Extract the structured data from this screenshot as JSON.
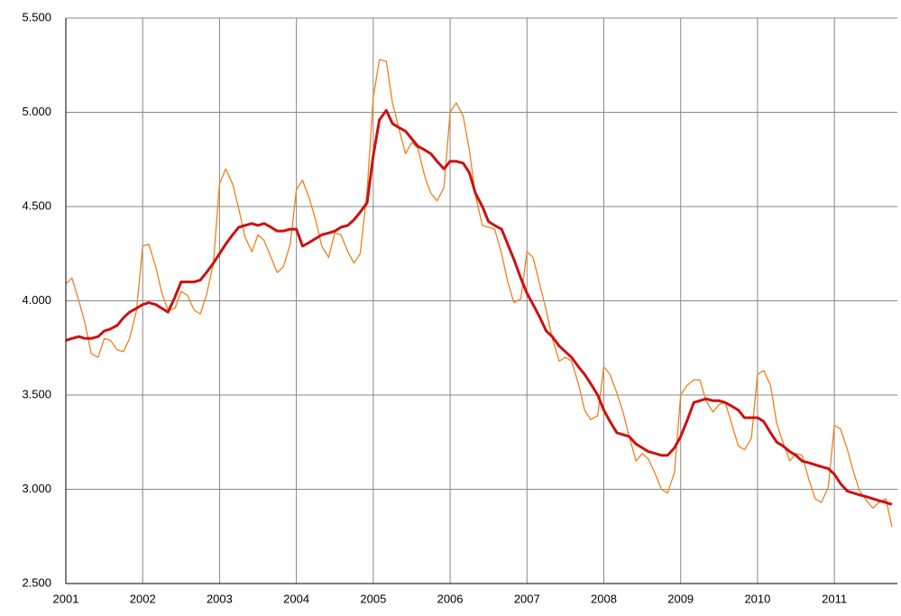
{
  "chart_data": {
    "type": "line",
    "x": [
      2001,
      2001.08,
      2001.17,
      2001.25,
      2001.33,
      2001.42,
      2001.5,
      2001.58,
      2001.67,
      2001.75,
      2001.83,
      2001.92,
      2002,
      2002.08,
      2002.17,
      2002.25,
      2002.33,
      2002.42,
      2002.5,
      2002.58,
      2002.67,
      2002.75,
      2002.83,
      2002.92,
      2003,
      2003.08,
      2003.17,
      2003.25,
      2003.33,
      2003.42,
      2003.5,
      2003.58,
      2003.67,
      2003.75,
      2003.83,
      2003.92,
      2004,
      2004.08,
      2004.17,
      2004.25,
      2004.33,
      2004.42,
      2004.5,
      2004.58,
      2004.67,
      2004.75,
      2004.83,
      2004.92,
      2005,
      2005.08,
      2005.17,
      2005.25,
      2005.33,
      2005.42,
      2005.5,
      2005.58,
      2005.67,
      2005.75,
      2005.83,
      2005.92,
      2006,
      2006.08,
      2006.17,
      2006.25,
      2006.33,
      2006.42,
      2006.5,
      2006.58,
      2006.67,
      2006.75,
      2006.83,
      2006.92,
      2007,
      2007.08,
      2007.17,
      2007.25,
      2007.33,
      2007.42,
      2007.5,
      2007.58,
      2007.67,
      2007.75,
      2007.83,
      2007.92,
      2008,
      2008.08,
      2008.17,
      2008.25,
      2008.33,
      2008.42,
      2008.5,
      2008.58,
      2008.67,
      2008.75,
      2008.83,
      2008.92,
      2009,
      2009.08,
      2009.17,
      2009.25,
      2009.33,
      2009.42,
      2009.5,
      2009.58,
      2009.67,
      2009.75,
      2009.83,
      2009.92,
      2010,
      2010.08,
      2010.17,
      2010.25,
      2010.33,
      2010.42,
      2010.5,
      2010.58,
      2010.67,
      2010.75,
      2010.83,
      2010.92,
      2011,
      2011.08,
      2011.17,
      2011.25,
      2011.33,
      2011.42,
      2011.5,
      2011.58,
      2011.67,
      2011.75
    ],
    "series": [
      {
        "color": "#f07f1f",
        "width": 1.3,
        "values": [
          4090,
          4120,
          4000,
          3880,
          3720,
          3700,
          3800,
          3790,
          3740,
          3730,
          3800,
          3950,
          4290,
          4300,
          4180,
          4040,
          3950,
          3960,
          4050,
          4030,
          3950,
          3930,
          4030,
          4200,
          4620,
          4700,
          4620,
          4490,
          4340,
          4260,
          4350,
          4320,
          4230,
          4150,
          4180,
          4300,
          4590,
          4640,
          4540,
          4430,
          4290,
          4230,
          4360,
          4350,
          4260,
          4200,
          4250,
          4580,
          5080,
          5280,
          5270,
          5050,
          4920,
          4780,
          4840,
          4810,
          4660,
          4570,
          4530,
          4600,
          5000,
          5050,
          4980,
          4800,
          4560,
          4400,
          4390,
          4380,
          4250,
          4100,
          3990,
          4010,
          4260,
          4230,
          4080,
          3950,
          3800,
          3680,
          3700,
          3680,
          3560,
          3420,
          3370,
          3390,
          3650,
          3610,
          3510,
          3410,
          3280,
          3150,
          3190,
          3160,
          3080,
          3000,
          2980,
          3090,
          3500,
          3550,
          3580,
          3580,
          3470,
          3410,
          3450,
          3460,
          3340,
          3230,
          3210,
          3270,
          3610,
          3630,
          3550,
          3350,
          3250,
          3150,
          3190,
          3180,
          3050,
          2950,
          2930,
          3010,
          3340,
          3320,
          3210,
          3090,
          2990,
          2940,
          2900,
          2930,
          2950,
          2800
        ]
      },
      {
        "color": "#cc1111",
        "width": 3,
        "values": [
          3790,
          3800,
          3810,
          3800,
          3800,
          3810,
          3840,
          3850,
          3870,
          3910,
          3940,
          3960,
          3980,
          3990,
          3980,
          3960,
          3940,
          4020,
          4100,
          4100,
          4100,
          4110,
          4150,
          4200,
          4250,
          4300,
          4350,
          4390,
          4400,
          4410,
          4400,
          4410,
          4390,
          4370,
          4370,
          4380,
          4380,
          4290,
          4310,
          4330,
          4350,
          4360,
          4370,
          4390,
          4400,
          4430,
          4470,
          4520,
          4770,
          4960,
          5010,
          4940,
          4920,
          4900,
          4860,
          4820,
          4800,
          4780,
          4740,
          4700,
          4740,
          4740,
          4730,
          4680,
          4570,
          4500,
          4420,
          4400,
          4380,
          4300,
          4220,
          4120,
          4040,
          3980,
          3910,
          3840,
          3810,
          3760,
          3730,
          3700,
          3650,
          3610,
          3560,
          3500,
          3420,
          3360,
          3300,
          3290,
          3280,
          3240,
          3220,
          3200,
          3190,
          3180,
          3180,
          3220,
          3280,
          3360,
          3460,
          3470,
          3480,
          3470,
          3470,
          3460,
          3440,
          3420,
          3380,
          3380,
          3380,
          3360,
          3300,
          3250,
          3230,
          3200,
          3180,
          3150,
          3140,
          3130,
          3120,
          3110,
          3080,
          3030,
          2990,
          2980,
          2970,
          2960,
          2950,
          2940,
          2930,
          2920
        ]
      }
    ],
    "xlim": [
      2001,
      2011.82
    ],
    "xticks": [
      2001,
      2002,
      2003,
      2004,
      2005,
      2006,
      2007,
      2008,
      2009,
      2010,
      2011
    ],
    "ylim": [
      2500,
      5500
    ],
    "yticks": [
      {
        "value": 2500,
        "label": "2.500"
      },
      {
        "value": 3000,
        "label": "3.000"
      },
      {
        "value": 3500,
        "label": "3.500"
      },
      {
        "value": 4000,
        "label": "4.000"
      },
      {
        "value": 4500,
        "label": "4.500"
      },
      {
        "value": 5000,
        "label": "5.000"
      },
      {
        "value": 5500,
        "label": "5.500"
      }
    ],
    "grid": true
  }
}
